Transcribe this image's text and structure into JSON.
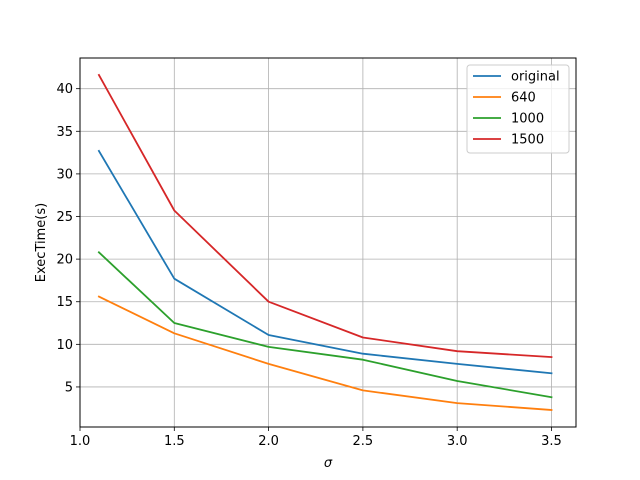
{
  "chart_data": {
    "type": "line",
    "title": "",
    "xlabel": "σ",
    "ylabel": "ExecTime(s)",
    "x": [
      1.1,
      1.5,
      2.0,
      2.5,
      3.0,
      3.5
    ],
    "xlim": [
      1.0,
      3.63
    ],
    "ylim": [
      0.3,
      43.6
    ],
    "xticks": [
      1.0,
      1.5,
      2.0,
      2.5,
      3.0,
      3.5
    ],
    "xtick_labels": [
      "1.0",
      "1.5",
      "2.0",
      "2.5",
      "3.0",
      "3.5"
    ],
    "yticks": [
      5,
      10,
      15,
      20,
      25,
      30,
      35,
      40
    ],
    "ytick_labels": [
      "5",
      "10",
      "15",
      "20",
      "25",
      "30",
      "35",
      "40"
    ],
    "grid": true,
    "legend_position": "top-right",
    "series": [
      {
        "name": "original",
        "color": "#1f77b4",
        "values": [
          32.7,
          17.7,
          11.1,
          8.9,
          7.7,
          6.6
        ]
      },
      {
        "name": "640",
        "color": "#ff7f0e",
        "values": [
          15.6,
          11.3,
          7.7,
          4.6,
          3.1,
          2.3
        ]
      },
      {
        "name": "1000",
        "color": "#2ca02c",
        "values": [
          20.8,
          12.5,
          9.7,
          8.2,
          5.7,
          3.8
        ]
      },
      {
        "name": "1500",
        "color": "#d62728",
        "values": [
          41.6,
          25.7,
          15.0,
          10.8,
          9.2,
          8.5
        ]
      }
    ]
  }
}
